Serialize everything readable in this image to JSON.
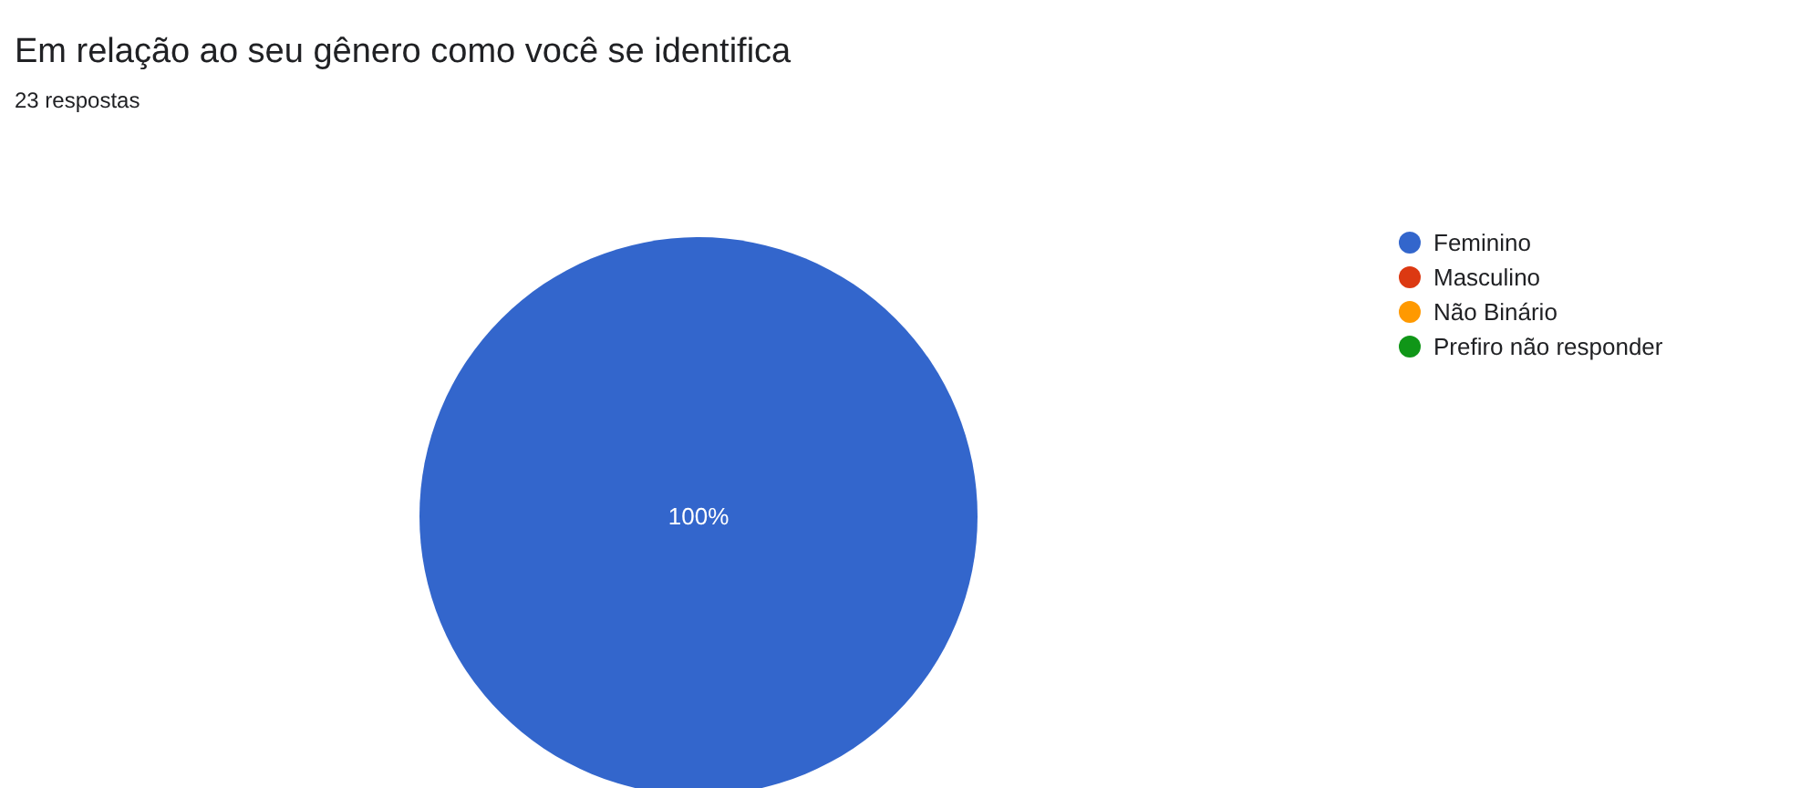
{
  "chart_data": {
    "type": "pie",
    "title": "Em relação ao seu gênero como você se identifica",
    "subtitle": "23 respostas",
    "categories": [
      "Feminino",
      "Masculino",
      "Não Binário",
      "Prefiro não responder"
    ],
    "values": [
      100,
      0,
      0,
      0
    ],
    "colors": [
      "#3366cc",
      "#dc3912",
      "#ff9900",
      "#109618"
    ],
    "value_labels": [
      "100%",
      null,
      null,
      null
    ],
    "legend": "right"
  }
}
